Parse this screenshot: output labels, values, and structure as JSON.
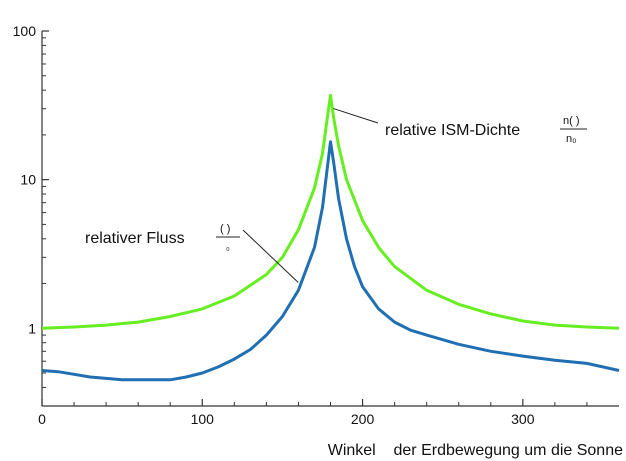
{
  "chart_data": {
    "type": "line",
    "title": "",
    "xlabel": "Winkel    der Erdbewegung um die Sonne",
    "ylabel": "",
    "xlim": [
      0,
      360
    ],
    "ylim": [
      0.3,
      100
    ],
    "yscale": "log",
    "x_ticks": [
      0,
      100,
      200,
      300
    ],
    "y_ticks": [
      1,
      10,
      100
    ],
    "x_tick_labels": [
      "0",
      "100",
      "200",
      "300"
    ],
    "y_tick_labels": [
      "1",
      "10",
      "100"
    ],
    "grid": false,
    "legend": "none",
    "series": [
      {
        "name": "relative ISM-Dichte",
        "color": "#66ee22",
        "x": [
          0,
          20,
          40,
          60,
          80,
          100,
          120,
          140,
          150,
          160,
          170,
          175,
          178,
          180,
          182,
          185,
          190,
          200,
          210,
          220,
          240,
          260,
          280,
          300,
          320,
          340,
          360
        ],
        "y": [
          1.0,
          1.02,
          1.05,
          1.1,
          1.2,
          1.35,
          1.65,
          2.3,
          3.0,
          4.6,
          8.8,
          15,
          26,
          37,
          26,
          17,
          10,
          5.3,
          3.5,
          2.6,
          1.8,
          1.45,
          1.25,
          1.12,
          1.05,
          1.02,
          1.0
        ]
      },
      {
        "name": "relativer Fluss",
        "color": "#1f6fb2",
        "x": [
          0,
          10,
          20,
          30,
          40,
          50,
          60,
          70,
          80,
          90,
          100,
          110,
          120,
          130,
          140,
          150,
          160,
          170,
          175,
          178,
          180,
          182,
          185,
          190,
          195,
          200,
          210,
          220,
          230,
          240,
          260,
          280,
          300,
          320,
          340,
          360
        ],
        "y": [
          0.52,
          0.51,
          0.49,
          0.47,
          0.46,
          0.45,
          0.45,
          0.45,
          0.45,
          0.47,
          0.5,
          0.55,
          0.62,
          0.72,
          0.9,
          1.2,
          1.8,
          3.5,
          6.5,
          12,
          18,
          13,
          7.5,
          4.0,
          2.6,
          1.9,
          1.35,
          1.1,
          0.97,
          0.9,
          0.78,
          0.7,
          0.65,
          0.61,
          0.58,
          0.52
        ]
      }
    ],
    "annotations": [
      {
        "text": "relative ISM-Dichte",
        "fraction_numerator": "n(  )",
        "fraction_denominator": "n₀",
        "points_to_series": "relative ISM-Dichte",
        "x": 180,
        "y": 33
      },
      {
        "text": "relativer Fluss",
        "fraction_numerator": "(  )",
        "fraction_denominator": "₀",
        "points_to_series": "relativer Fluss",
        "x": 163,
        "y": 2.3
      }
    ]
  }
}
